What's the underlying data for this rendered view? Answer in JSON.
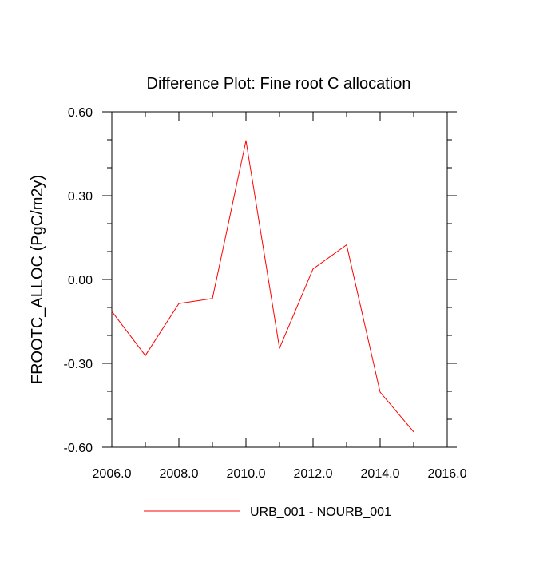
{
  "chart_data": {
    "type": "line",
    "title": "Difference Plot: Fine root C allocation",
    "xlabel": "",
    "ylabel": "FROOTC_ALLOC  (PgC/m2y)",
    "xlim": [
      2006,
      2016
    ],
    "ylim": [
      -0.6,
      0.6
    ],
    "x_ticks": [
      2006,
      2008,
      2010,
      2012,
      2014,
      2016
    ],
    "x_tick_labels": [
      "2006.0",
      "2008.0",
      "2010.0",
      "2012.0",
      "2014.0",
      "2016.0"
    ],
    "y_ticks": [
      -0.6,
      -0.3,
      0.0,
      0.3,
      0.6
    ],
    "y_tick_labels": [
      "-0.60",
      "-0.30",
      "0.00",
      "0.30",
      "0.60"
    ],
    "grid": false,
    "legend_position": "bottom-center",
    "series": [
      {
        "name": "URB_001 - NOURB_001",
        "color": "#ff0000",
        "x": [
          2006,
          2007,
          2008,
          2009,
          2010,
          2011,
          2012,
          2013,
          2014,
          2015
        ],
        "y": [
          -0.114,
          -0.272,
          -0.086,
          -0.068,
          0.497,
          -0.246,
          0.038,
          0.124,
          -0.403,
          -0.545
        ]
      }
    ]
  }
}
